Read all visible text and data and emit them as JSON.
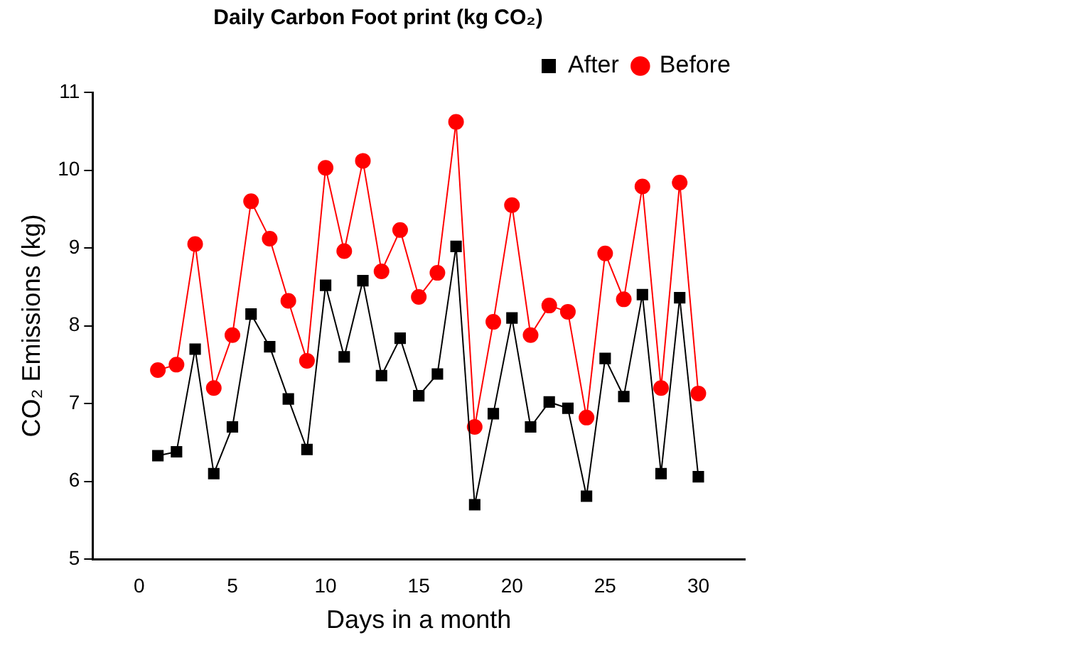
{
  "chart_data": {
    "type": "line",
    "title": "Daily Carbon Foot print (kg CO₂)",
    "xlabel": "Days in a month",
    "ylabel": "CO₂ Emissions (kg)",
    "x": [
      1,
      2,
      3,
      4,
      5,
      6,
      7,
      8,
      9,
      10,
      11,
      12,
      13,
      14,
      15,
      16,
      17,
      18,
      19,
      20,
      21,
      22,
      23,
      24,
      25,
      26,
      27,
      28,
      29,
      30
    ],
    "series": [
      {
        "name": "After",
        "color": "#000000",
        "marker": "square",
        "values": [
          6.33,
          6.38,
          7.7,
          6.1,
          6.7,
          8.15,
          7.73,
          7.06,
          6.41,
          8.52,
          7.6,
          8.58,
          7.36,
          7.84,
          7.1,
          7.38,
          9.02,
          5.7,
          6.87,
          8.1,
          6.7,
          7.02,
          6.94,
          5.81,
          7.58,
          7.09,
          8.4,
          6.1,
          8.36,
          6.06
        ]
      },
      {
        "name": "Before",
        "color": "#ff0000",
        "marker": "circle",
        "values": [
          7.43,
          7.5,
          9.05,
          7.2,
          7.88,
          9.6,
          9.12,
          8.32,
          7.55,
          10.03,
          8.96,
          10.12,
          8.7,
          9.23,
          8.37,
          8.68,
          10.62,
          6.7,
          8.05,
          9.55,
          7.88,
          8.26,
          8.18,
          6.82,
          8.93,
          8.34,
          9.79,
          7.2,
          9.84,
          7.13
        ]
      }
    ],
    "xlim": [
      -2.5,
      32.5
    ],
    "xticks": [
      0,
      5,
      10,
      15,
      20,
      25,
      30
    ],
    "ylim": [
      5,
      11
    ],
    "yticks": [
      5,
      6,
      7,
      8,
      9,
      10,
      11
    ],
    "grid": false,
    "legend": "top right",
    "line_style": "solid"
  }
}
